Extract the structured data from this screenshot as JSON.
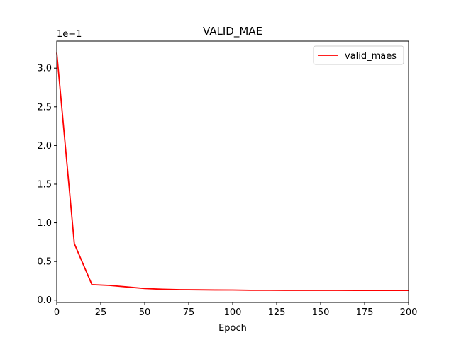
{
  "chart_data": {
    "type": "line",
    "title": "VALID_MAE",
    "xlabel": "Epoch",
    "ylabel": "",
    "y_offset_label": "1e−1",
    "xlim": [
      0,
      200
    ],
    "ylim": [
      -0.03,
      3.35
    ],
    "x_ticks": [
      0,
      25,
      50,
      75,
      100,
      125,
      150,
      175,
      200
    ],
    "x_tick_labels": [
      "0",
      "25",
      "50",
      "75",
      "100",
      "125",
      "150",
      "175",
      "200"
    ],
    "y_ticks": [
      0.0,
      0.5,
      1.0,
      1.5,
      2.0,
      2.5,
      3.0
    ],
    "y_tick_labels": [
      "0.0",
      "0.5",
      "1.0",
      "1.5",
      "2.0",
      "2.5",
      "3.0"
    ],
    "grid": false,
    "legend_position": "top-right",
    "series": [
      {
        "name": "valid_maes",
        "color": "#ff0000",
        "x": [
          0,
          10,
          20,
          30,
          40,
          50,
          60,
          70,
          80,
          90,
          100,
          110,
          120,
          130,
          140,
          150,
          160,
          170,
          180,
          190,
          200
        ],
        "y": [
          3.2,
          0.73,
          0.2,
          0.19,
          0.17,
          0.15,
          0.14,
          0.135,
          0.133,
          0.131,
          0.13,
          0.127,
          0.127,
          0.126,
          0.126,
          0.126,
          0.126,
          0.125,
          0.125,
          0.125,
          0.125
        ]
      }
    ]
  }
}
